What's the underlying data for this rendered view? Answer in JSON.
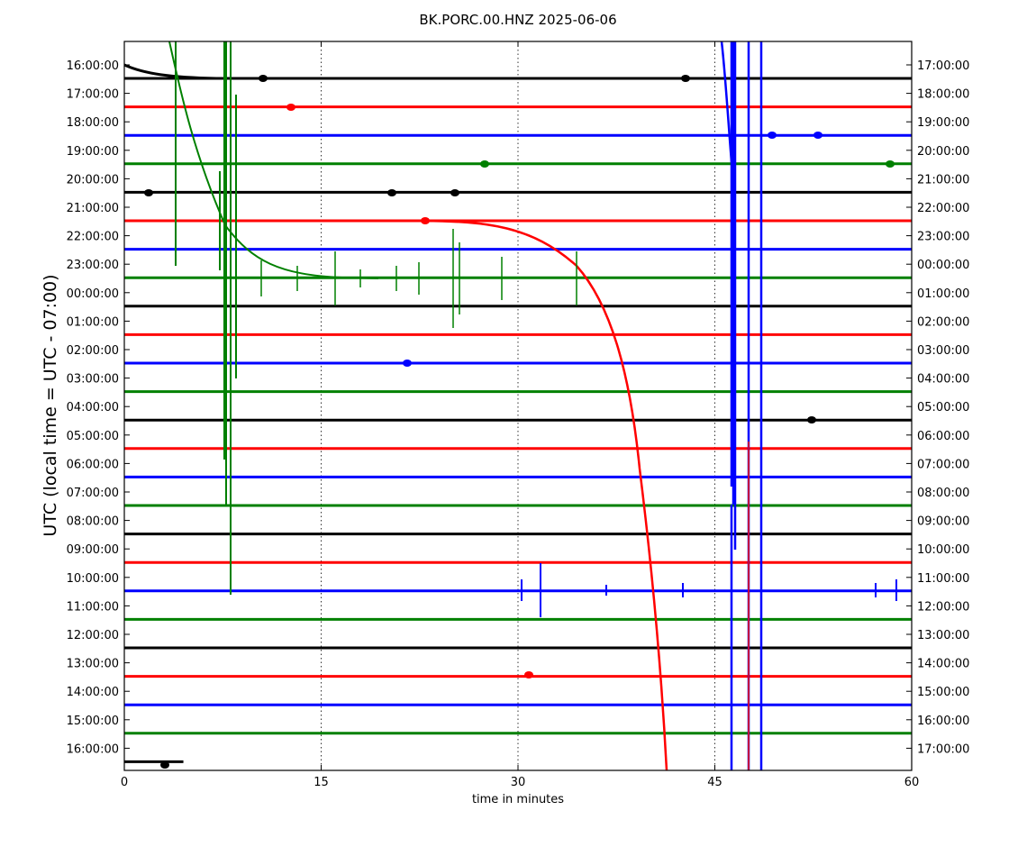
{
  "chart_data": {
    "type": "line",
    "title": "BK.PORC.00.HNZ 2025-06-06",
    "xlabel": "time in minutes",
    "ylabel": "UTC (local time = UTC - 07:00)",
    "xlim": [
      0,
      60
    ],
    "x_ticks": [
      0,
      15,
      30,
      45,
      60
    ],
    "x_tick_labels": [
      "0",
      "15",
      "30",
      "45",
      "60"
    ],
    "grid": "vertical dotted lines at 15, 30, 45",
    "left_tick_labels": [
      "16:00:00",
      "17:00:00",
      "18:00:00",
      "19:00:00",
      "20:00:00",
      "21:00:00",
      "22:00:00",
      "23:00:00",
      "00:00:00",
      "01:00:00",
      "02:00:00",
      "03:00:00",
      "04:00:00",
      "05:00:00",
      "06:00:00",
      "07:00:00",
      "08:00:00",
      "09:00:00",
      "10:00:00",
      "11:00:00",
      "12:00:00",
      "13:00:00",
      "14:00:00",
      "15:00:00",
      "16:00:00"
    ],
    "right_tick_labels": [
      "17:00:00",
      "18:00:00",
      "19:00:00",
      "20:00:00",
      "21:00:00",
      "22:00:00",
      "23:00:00",
      "00:00:00",
      "01:00:00",
      "02:00:00",
      "03:00:00",
      "04:00:00",
      "05:00:00",
      "06:00:00",
      "07:00:00",
      "08:00:00",
      "09:00:00",
      "10:00:00",
      "11:00:00",
      "12:00:00",
      "13:00:00",
      "14:00:00",
      "15:00:00",
      "16:00:00",
      "17:00:00"
    ],
    "trace_colors": [
      "#000000",
      "#ff0000",
      "#0000ff",
      "#008000"
    ],
    "traces_count": 25
  }
}
